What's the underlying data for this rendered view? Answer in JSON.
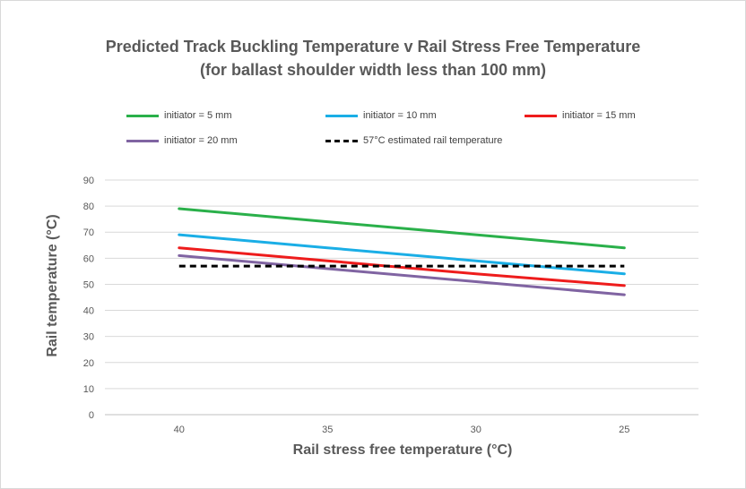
{
  "title": {
    "line1": "Predicted Track Buckling Temperature v Rail Stress Free Temperature",
    "line2": "(for ballast shoulder width less than 100 mm)"
  },
  "chart_data": {
    "type": "line",
    "xlabel": "Rail stress free temperature (°C)",
    "ylabel": "Rail temperature (°C)",
    "categories": [
      "40",
      "35",
      "30",
      "25"
    ],
    "x": [
      40,
      35,
      30,
      25
    ],
    "x_reversed": true,
    "ylim": [
      0,
      90
    ],
    "yticks": [
      0,
      10,
      20,
      30,
      40,
      50,
      60,
      70,
      80,
      90
    ],
    "grid": "horizontal",
    "legend_position": "top",
    "series": [
      {
        "name": "initiator = 5 mm",
        "color": "#2ab04a",
        "dash": "solid",
        "values": [
          79,
          74,
          69,
          64
        ]
      },
      {
        "name": "initiator = 10 mm",
        "color": "#1aaee6",
        "dash": "solid",
        "values": [
          69,
          64,
          59,
          54
        ]
      },
      {
        "name": "initiator = 15 mm",
        "color": "#ee1c1c",
        "dash": "solid",
        "values": [
          64,
          59,
          54,
          49.5
        ]
      },
      {
        "name": "initiator = 20 mm",
        "color": "#8064a2",
        "dash": "solid",
        "values": [
          61,
          56,
          51,
          46
        ]
      },
      {
        "name": "57°C estimated rail temperature",
        "color": "#000000",
        "dash": "dashed",
        "values": [
          57,
          57,
          57,
          57
        ]
      }
    ]
  }
}
